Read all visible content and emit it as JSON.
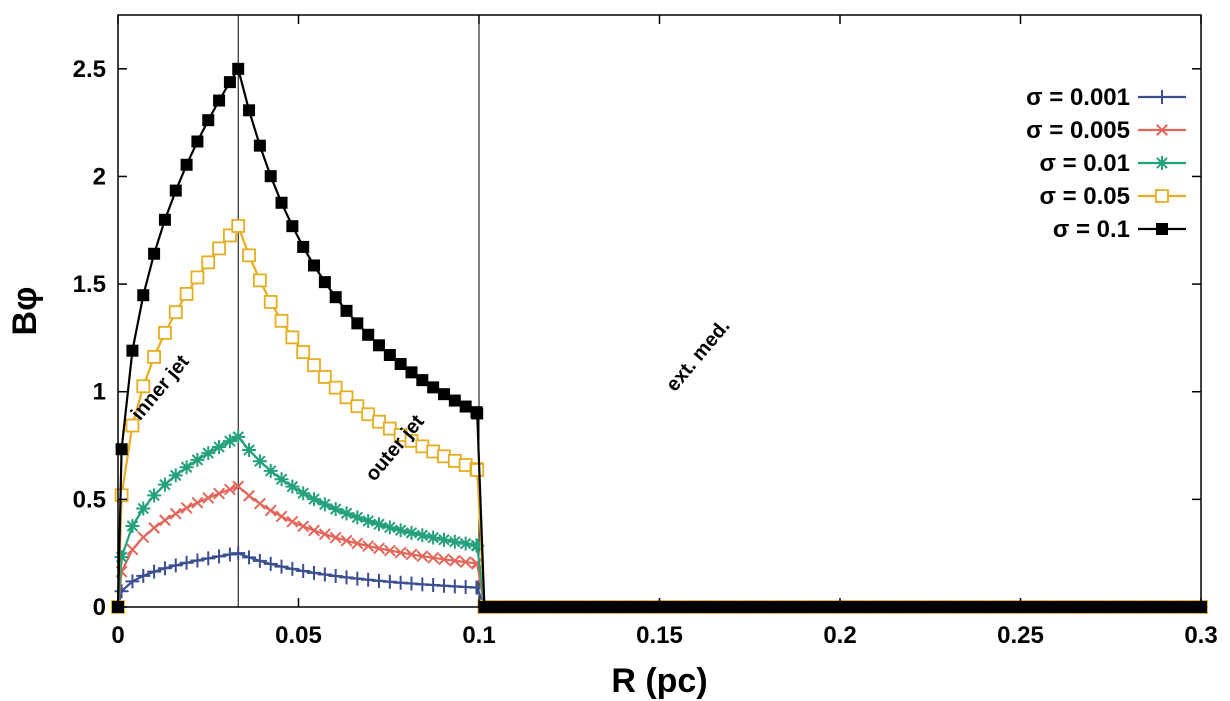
{
  "chart_data": {
    "type": "line",
    "title": "",
    "xlabel": "R (pc)",
    "ylabel": "Bφ",
    "xlim": [
      0,
      0.3
    ],
    "ylim": [
      0,
      2.75
    ],
    "xticks": [
      0,
      0.05,
      0.1,
      0.15,
      0.2,
      0.25,
      0.3
    ],
    "xtick_labels": [
      "0",
      "0.05",
      "0.1",
      "0.15",
      "0.2",
      "0.25",
      "0.3"
    ],
    "yticks": [
      0,
      0.5,
      1,
      1.5,
      2,
      2.5
    ],
    "ytick_labels": [
      "0",
      "0.5",
      "1",
      "1.5",
      "2",
      "2.5"
    ],
    "grid": false,
    "legend_position": "top-right",
    "vertical_lines": [
      0.0333,
      0.1
    ],
    "model": {
      "description": "B(R) = peak * (R/Rin)^0.35 for R <= Rin; peak * (Rin/R)^0.93 for Rin < R <= Rout; 0 beyond",
      "inner_radius": 0.0333,
      "outer_radius": 0.1,
      "x_max": 0.3,
      "inner_exponent": 0.35,
      "outer_exponent": 0.93,
      "inner_step": 0.003,
      "outer_step": 0.003,
      "external_step": 0.003
    },
    "series": [
      {
        "name": "σ = 0.001",
        "label": "σ = 0.001",
        "color": "#3b4f8f",
        "marker": "plus",
        "peak": 0.25
      },
      {
        "name": "σ = 0.005",
        "label": "σ = 0.005",
        "color": "#e2675a",
        "marker": "cross",
        "peak": 0.56
      },
      {
        "name": "σ = 0.01",
        "label": "σ = 0.01",
        "color": "#23a07d",
        "marker": "asterisk",
        "peak": 0.79
      },
      {
        "name": "σ = 0.05",
        "label": "σ = 0.05",
        "color": "#e6ad1f",
        "marker": "open-square",
        "peak": 1.77
      },
      {
        "name": "σ = 0.1",
        "label": "σ = 0.1",
        "color": "#000000",
        "marker": "filled-square",
        "peak": 2.5
      }
    ],
    "annotations": [
      {
        "text": "inner jet",
        "x": 0.013,
        "y": 1.0,
        "rotation": -50
      },
      {
        "text": "outer jet",
        "x": 0.078,
        "y": 0.72,
        "rotation": -50
      },
      {
        "text": "ext. med.",
        "x": 0.162,
        "y": 1.15,
        "rotation": -50
      }
    ]
  }
}
